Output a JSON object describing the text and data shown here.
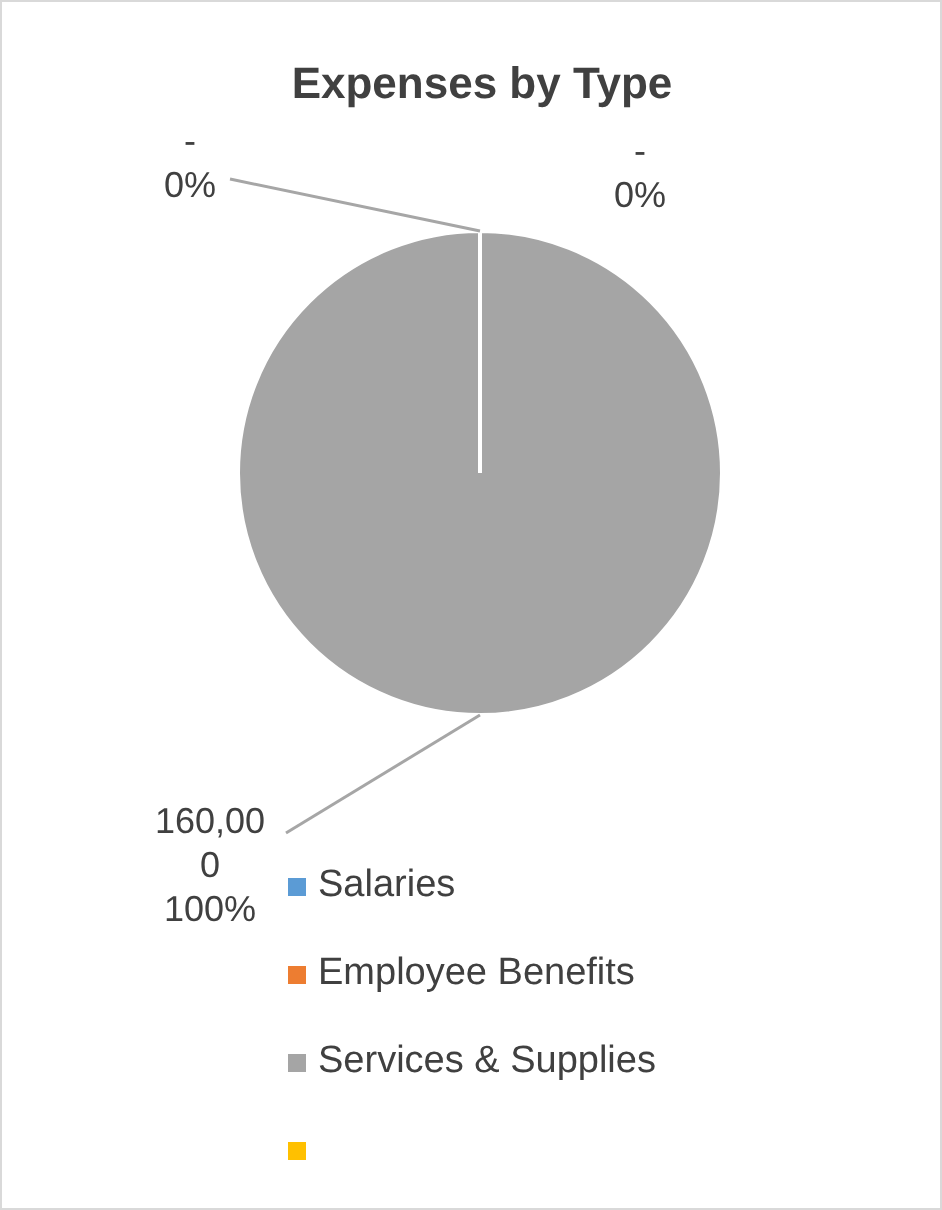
{
  "chart_data": {
    "type": "pie",
    "title": "Expenses by Type",
    "categories": [
      "Salaries",
      "Employee Benefits",
      "Services & Supplies",
      null
    ],
    "values": [
      0,
      0,
      160000,
      null
    ],
    "colors": [
      "#5b9bd5",
      "#ed7d31",
      "#a5a5a5",
      "#ffc000"
    ],
    "value_labels": [
      "-\n0%",
      "-\n0%",
      "160,000\n100%",
      null
    ],
    "legend": "bottom"
  }
}
